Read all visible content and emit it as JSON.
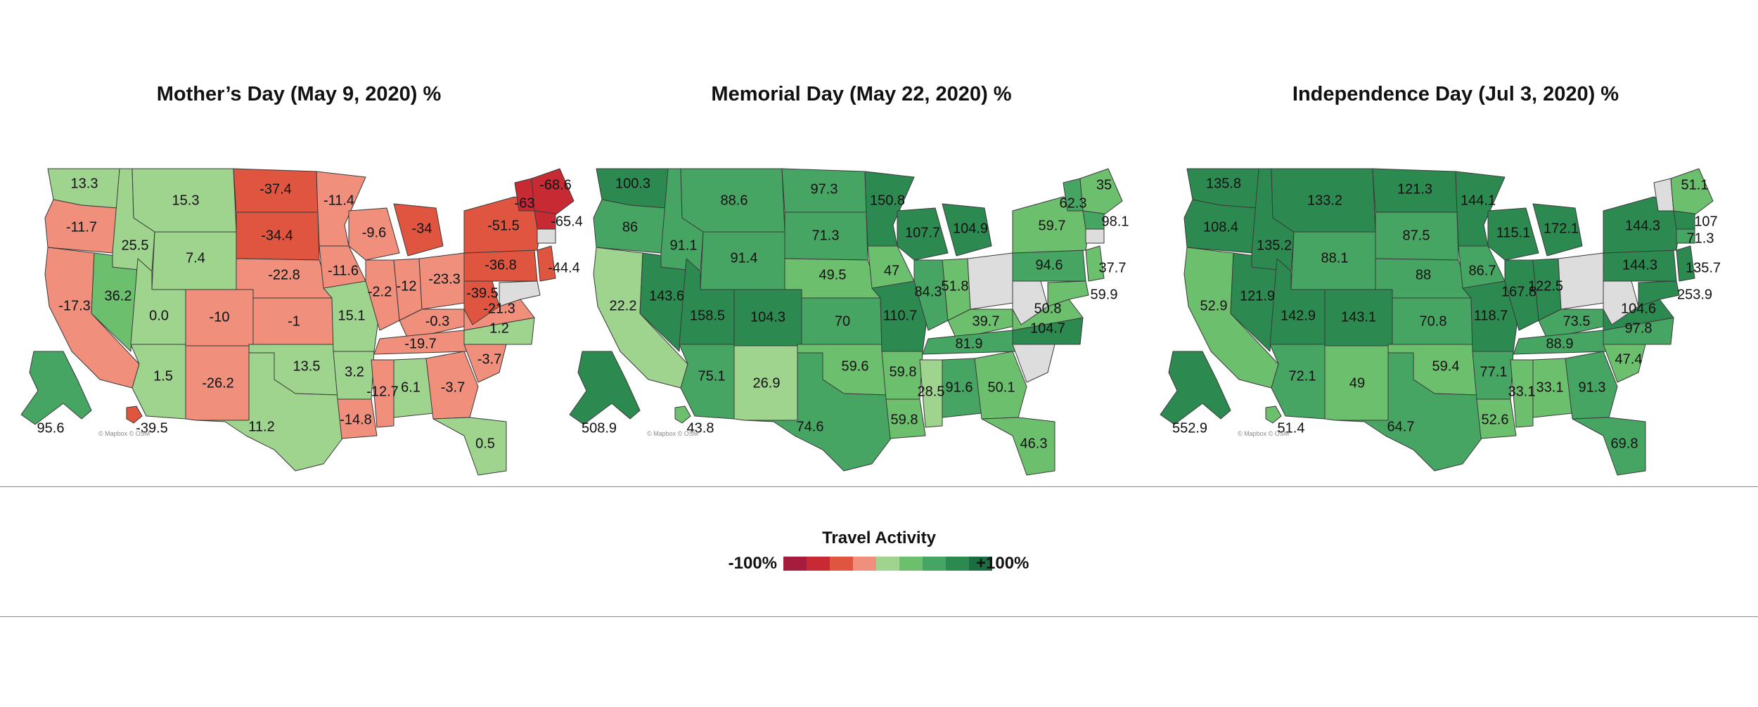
{
  "maps": [
    {
      "title": "Mother’s Day (May 9, 2020) %",
      "credit": "© Mapbox © OSM",
      "values": {
        "WA": "13.3",
        "OR": "-11.7",
        "CA": "-17.3",
        "NV": "36.2",
        "ID": "25.5",
        "MT": "15.3",
        "WY": "7.4",
        "UT": "0.0",
        "AZ": "1.5",
        "CO": "-10",
        "NM": "-26.2",
        "ND": "-37.4",
        "SD": "-34.4",
        "NE": "-22.8",
        "KS": "-1",
        "OK": "13.5",
        "TX": "11.2",
        "MN": "-11.4",
        "IA": "-11.6",
        "MO": "15.1",
        "AR": "3.2",
        "LA": "-14.8",
        "WI": "-9.6",
        "IL": "-2.2",
        "MS": "-12.7",
        "MI": "-34",
        "IN": "-12",
        "KY": "-0.3",
        "TN": "-19.7",
        "AL": "6.1",
        "OH": "-23.3",
        "GA": "-3.7",
        "FL": "0.5",
        "SC": "-3.7",
        "NC": "1.2",
        "VA": "-21.3",
        "WV": "-39.5",
        "PA": "-36.8",
        "NY": "-51.5",
        "VT": "-63",
        "ME": "-68.6",
        "MA": "-65.4",
        "NJ": "-44.4",
        "AK": "95.6",
        "HI": "-39.5"
      }
    },
    {
      "title": "Memorial Day (May 22, 2020) %",
      "credit": "© Mapbox © OSM",
      "values": {
        "WA": "100.3",
        "OR": "86",
        "CA": "22.2",
        "NV": "143.6",
        "ID": "91.1",
        "MT": "88.6",
        "WY": "91.4",
        "UT": "158.5",
        "AZ": "75.1",
        "CO": "104.3",
        "NM": "26.9",
        "ND": "97.3",
        "SD": "71.3",
        "NE": "49.5",
        "KS": "70",
        "OK": "59.6",
        "TX": "74.6",
        "MN": "150.8",
        "IA": "47",
        "MO": "110.7",
        "AR": "59.8",
        "LA": "59.8",
        "WI": "107.7",
        "IL": "84.3",
        "MS": "28.5",
        "MI": "104.9",
        "IN": "51.8",
        "KY": "39.7",
        "TN": "81.9",
        "AL": "91.6",
        "GA": "50.1",
        "FL": "46.3",
        "NC": "104.7",
        "VA": "50.8",
        "PA": "94.6",
        "NY": "59.7",
        "VT": "62.3",
        "ME": "35",
        "MA": "98.1",
        "NJ": "37.7",
        "MD": "59.9",
        "AK": "508.9",
        "HI": "43.8"
      }
    },
    {
      "title": "Independence Day (Jul 3, 2020) %",
      "credit": "© Mapbox © OSM",
      "values": {
        "WA": "135.8",
        "OR": "108.4",
        "CA": "52.9",
        "NV": "121.9",
        "ID": "135.2",
        "MT": "133.2",
        "WY": "88.1",
        "UT": "142.9",
        "AZ": "72.1",
        "CO": "143.1",
        "NM": "49",
        "ND": "121.3",
        "SD": "87.5",
        "NE": "88",
        "KS": "70.8",
        "OK": "59.4",
        "TX": "64.7",
        "MN": "144.1",
        "IA": "86.7",
        "MO": "118.7",
        "AR": "77.1",
        "LA": "52.6",
        "WI": "115.1",
        "IL": "167.8",
        "MS": "33.1",
        "MI": "172.1",
        "IN": "122.5",
        "KY": "73.5",
        "TN": "88.9",
        "AL": "33.1",
        "GA": "91.3",
        "FL": "69.8",
        "SC": "47.4",
        "NC": "97.8",
        "VA": "104.6",
        "PA": "144.3",
        "NY": "144.3",
        "ME": "51.1",
        "MA": "107",
        "CT": "71.3",
        "NJ": "135.7",
        "MD": "253.9",
        "AK": "552.9",
        "HI": "51.4"
      }
    }
  ],
  "legend": {
    "title": "Travel Activity",
    "min_label": "-100%",
    "max_label": "+100%",
    "colors": [
      "#a51c3c",
      "#c72a33",
      "#e0553f",
      "#ef8f7c",
      "#9ed48d",
      "#6cbf6c",
      "#47a563",
      "#2c8a51",
      "#1c6d3f"
    ]
  }
}
